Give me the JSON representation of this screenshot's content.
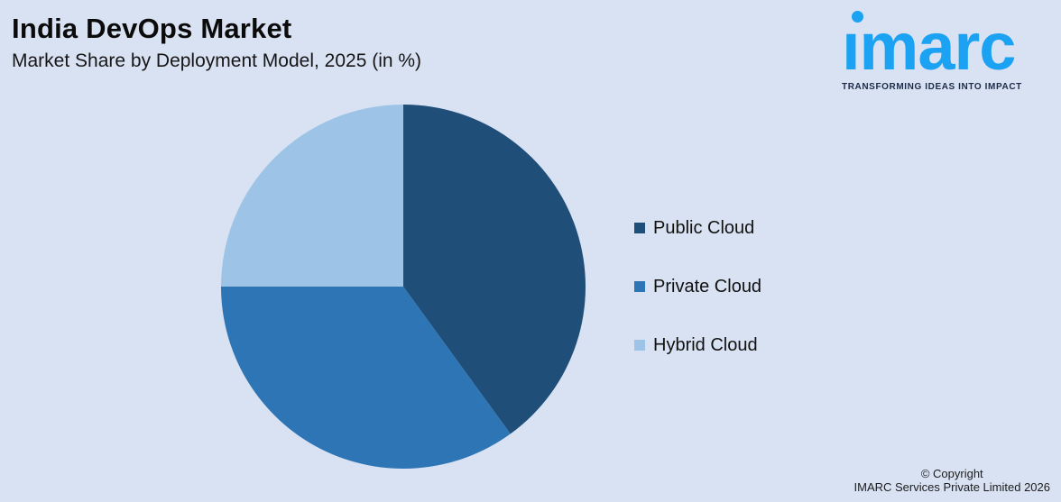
{
  "canvas": {
    "background": "#D9E2F3"
  },
  "header": {
    "title": "India DevOps Market",
    "subtitle": "Market Share by Deployment Model, 2025 (in %)"
  },
  "logo": {
    "wordmark": "imarc",
    "tagline": "TRANSFORMING IDEAS INTO IMPACT",
    "wordmark_color": "#1CA2F2",
    "tagline_color": "#1D2B48"
  },
  "chart_data": {
    "type": "pie",
    "title": "India DevOps Market",
    "subtitle": "Market Share by Deployment Model, 2025 (in %)",
    "unit": "%",
    "year": "2025",
    "start_angle_deg": 0,
    "direction": "clockwise",
    "legend_position": "right",
    "data_labels_shown": false,
    "slices": [
      {
        "label": "Public Cloud",
        "value": 40,
        "color": "#1F4E79"
      },
      {
        "label": "Private Cloud",
        "value": 35,
        "color": "#2E75B6"
      },
      {
        "label": "Hybrid Cloud",
        "value": 25,
        "color": "#9DC3E6"
      }
    ]
  },
  "footer": {
    "copyright_line1": "© Copyright",
    "copyright_line2": "IMARC Services Private Limited 2026"
  }
}
